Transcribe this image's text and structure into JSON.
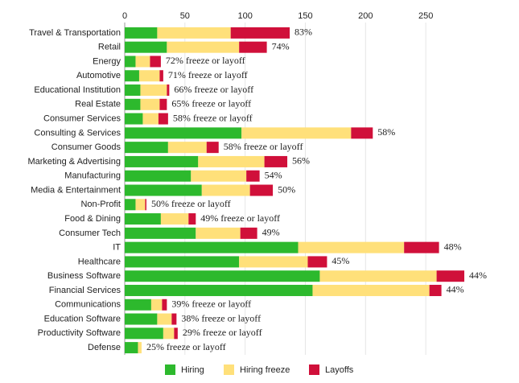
{
  "chart_data": {
    "type": "stacked_barh",
    "categories": [
      "Travel & Transportation",
      "Retail",
      "Energy",
      "Automotive",
      "Educational Institution",
      "Real Estate",
      "Consumer Services",
      "Consulting & Services",
      "Consumer Goods",
      "Marketing & Advertising",
      "Manufacturing",
      "Media & Entertainment",
      "Non-Profit",
      "Food & Dining",
      "Consumer Tech",
      "IT",
      "Healthcare",
      "Business Software",
      "Financial Services",
      "Communications",
      "Education Software",
      "Productivity Software",
      "Defense"
    ],
    "series": [
      {
        "name": "Hiring",
        "color": "#2db92d",
        "values": [
          27,
          35,
          9,
          12,
          13,
          13,
          15,
          97,
          36,
          61,
          55,
          64,
          9,
          30,
          59,
          144,
          95,
          162,
          156,
          22,
          27,
          32,
          11
        ]
      },
      {
        "name": "Hiring freeze",
        "color": "#ffe07a",
        "values": [
          61,
          60,
          12,
          17,
          22,
          16,
          13,
          91,
          32,
          55,
          46,
          40,
          8,
          23,
          37,
          88,
          57,
          97,
          97,
          9,
          12,
          9,
          3
        ]
      },
      {
        "name": "Layoffs",
        "color": "#d0103a",
        "values": [
          49,
          23,
          9,
          3,
          2,
          6,
          8,
          18,
          10,
          19,
          11,
          19,
          1,
          6,
          14,
          29,
          16,
          23,
          10,
          4,
          4,
          3,
          0
        ]
      }
    ],
    "bar_labels": [
      "83%",
      "74%",
      "72% freeze or layoff",
      "71% freeze or layoff",
      "66% freeze or layoff",
      "65% freeze or layoff",
      "58% freeze or layoff",
      "58%",
      "58% freeze or layoff",
      "56%",
      "54%",
      "50%",
      "50% freeze or layoff",
      "49% freeze or layoff",
      "49%",
      "48%",
      "45%",
      "44%",
      "44%",
      "39% freeze or layoff",
      "38% freeze or layoff",
      "29% freeze or layoff",
      "25% freeze or layoff"
    ],
    "xlim": [
      0,
      290
    ],
    "xticks": [
      0,
      50,
      100,
      150,
      200,
      250
    ],
    "grid": true,
    "legend": "bottom"
  }
}
